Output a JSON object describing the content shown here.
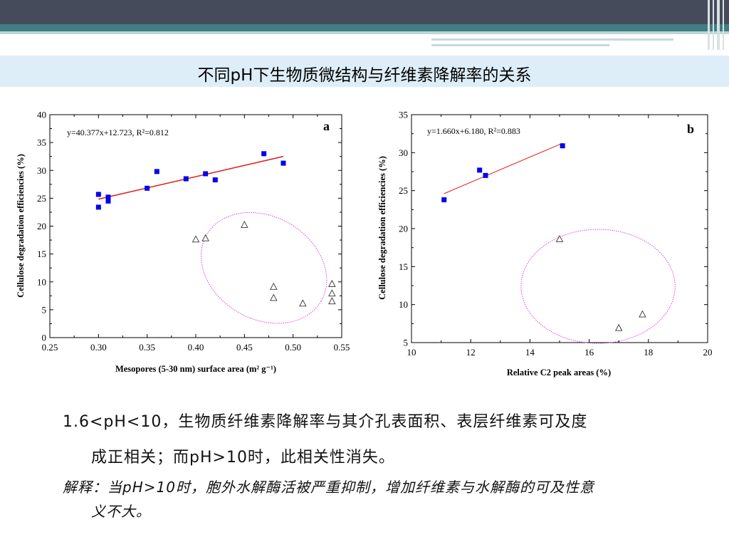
{
  "slide": {
    "title": "不同pH下生物质微结构与纤维素降解率的关系",
    "paragraph_line1": "1.6<pH<10，生物质纤维素降解率与其介孔表面积、表层纤维素可及度",
    "paragraph_line2": "成正相关；而pH>10时，此相关性消失。",
    "note_line1": "解释：当pH>10时，胞外水解酶活被严重抑制，增加纤维素与水解酶的可及性意",
    "note_line2": "义不大。"
  },
  "colors": {
    "topbar": "#464b5b",
    "accent_teal": "#3f7e84",
    "title_band": "#deeef8",
    "square_marker": "#0000ee",
    "fit_line": "#e0201a",
    "ellipse": "#e040e0"
  },
  "chart_data": [
    {
      "type": "scatter",
      "panel_label": "a",
      "equation": "y=40.377x+12.723, R²=0.812",
      "xlabel": "Mesopores (5-30 nm) surface area (m² g⁻¹)",
      "ylabel": "Cellulose degradation efficiencies (%)",
      "xlim": [
        0.25,
        0.55
      ],
      "ylim": [
        0,
        40
      ],
      "xticks": [
        "0.25",
        "0.30",
        "0.35",
        "0.40",
        "0.45",
        "0.50",
        "0.55"
      ],
      "yticks": [
        "0",
        "5",
        "10",
        "15",
        "20",
        "25",
        "30",
        "35",
        "40"
      ],
      "fit": {
        "slope": 40.377,
        "intercept": 12.723,
        "x_range": [
          0.3,
          0.49
        ]
      },
      "series": [
        {
          "marker": "filled-square",
          "points": [
            [
              0.3,
              25.7
            ],
            [
              0.3,
              23.4
            ],
            [
              0.31,
              25.2
            ],
            [
              0.31,
              24.5
            ],
            [
              0.35,
              26.8
            ],
            [
              0.36,
              29.8
            ],
            [
              0.39,
              28.5
            ],
            [
              0.41,
              29.4
            ],
            [
              0.42,
              28.3
            ],
            [
              0.47,
              33.0
            ],
            [
              0.49,
              31.3
            ]
          ]
        },
        {
          "marker": "open-triangle",
          "points": [
            [
              0.4,
              17.6
            ],
            [
              0.41,
              17.8
            ],
            [
              0.45,
              20.2
            ],
            [
              0.48,
              9.1
            ],
            [
              0.48,
              7.1
            ],
            [
              0.51,
              6.1
            ],
            [
              0.54,
              9.6
            ],
            [
              0.54,
              7.9
            ],
            [
              0.54,
              6.5
            ]
          ]
        }
      ],
      "highlight_ellipse": {
        "cx": 0.47,
        "cy": 12.5,
        "rx": 0.068,
        "ry": 9.2,
        "rotate": 30
      }
    },
    {
      "type": "scatter",
      "panel_label": "b",
      "equation": "y=1.660x+6.180, R²=0.883",
      "xlabel": "Relative C2 peak areas (%)",
      "ylabel": "Cellulose degradation efficiencies (%)",
      "xlim": [
        10,
        20
      ],
      "ylim": [
        5,
        35
      ],
      "xticks": [
        "10",
        "12",
        "14",
        "16",
        "18",
        "20"
      ],
      "yticks": [
        "5",
        "10",
        "15",
        "20",
        "25",
        "30",
        "35"
      ],
      "fit": {
        "slope": 1.66,
        "intercept": 6.18,
        "x_range": [
          11.1,
          15.1
        ]
      },
      "series": [
        {
          "marker": "filled-square",
          "points": [
            [
              11.1,
              23.8
            ],
            [
              12.3,
              27.7
            ],
            [
              12.5,
              27.0
            ],
            [
              15.1,
              30.9
            ]
          ]
        },
        {
          "marker": "open-triangle",
          "points": [
            [
              15.0,
              18.6
            ],
            [
              17.0,
              6.9
            ],
            [
              17.8,
              8.7
            ]
          ]
        }
      ],
      "highlight_ellipse": {
        "cx": 16.3,
        "cy": 12.4,
        "rx": 2.6,
        "ry": 7.5,
        "rotate": 0
      }
    }
  ]
}
